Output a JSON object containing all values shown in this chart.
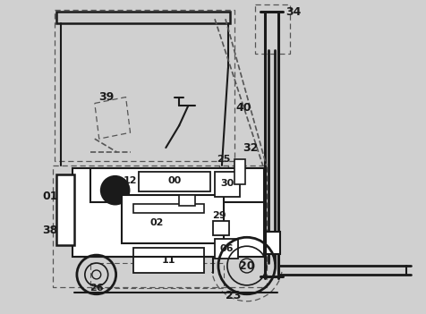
{
  "bg_color": "#ffffff",
  "line_color": "#1a1a1a",
  "dashed_color": "#555555",
  "fig_bg": "#d0d0d0"
}
